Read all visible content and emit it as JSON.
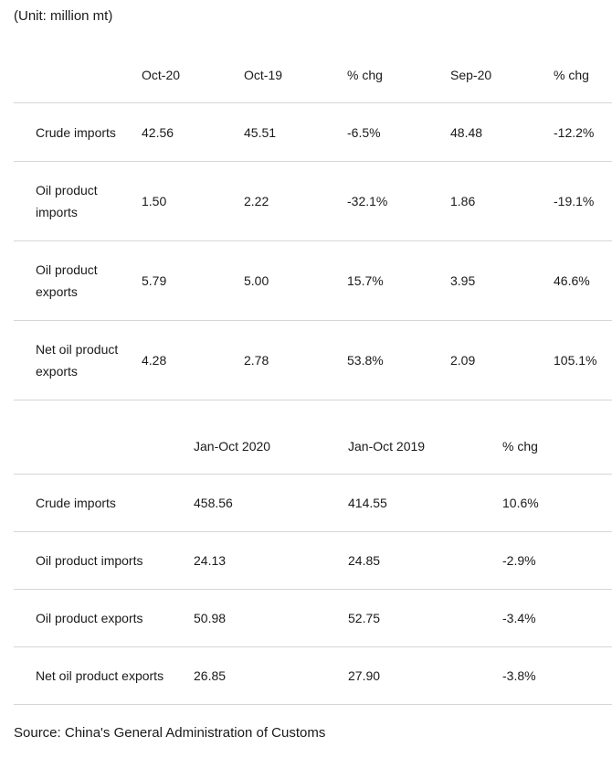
{
  "unit_note": "(Unit: million mt)",
  "monthly_table": {
    "headers": [
      "",
      "Oct-20",
      "Oct-19",
      "% chg",
      "Sep-20",
      "% chg"
    ],
    "rows": [
      {
        "label": "Crude imports",
        "values": [
          "42.56",
          "45.51",
          "-6.5%",
          "48.48",
          "-12.2%"
        ]
      },
      {
        "label": "Oil product imports",
        "values": [
          "1.50",
          "2.22",
          "-32.1%",
          "1.86",
          "-19.1%"
        ]
      },
      {
        "label": "Oil product exports",
        "values": [
          "5.79",
          "5.00",
          "15.7%",
          "3.95",
          "46.6%"
        ]
      },
      {
        "label": "Net oil product exports",
        "values": [
          "4.28",
          "2.78",
          "53.8%",
          "2.09",
          "105.1%"
        ]
      }
    ]
  },
  "ytd_table": {
    "headers": [
      "",
      "Jan-Oct 2020",
      "Jan-Oct 2019",
      "% chg"
    ],
    "rows": [
      {
        "label": "Crude imports",
        "values": [
          "458.56",
          "414.55",
          "10.6%"
        ]
      },
      {
        "label": "Oil product imports",
        "values": [
          "24.13",
          "24.85",
          "-2.9%"
        ]
      },
      {
        "label": "Oil product exports",
        "values": [
          "50.98",
          "52.75",
          "-3.4%"
        ]
      },
      {
        "label": "Net oil product exports",
        "values": [
          "26.85",
          "27.90",
          "-3.8%"
        ]
      }
    ]
  },
  "source_note": "Source: China's General Administration of Customs"
}
